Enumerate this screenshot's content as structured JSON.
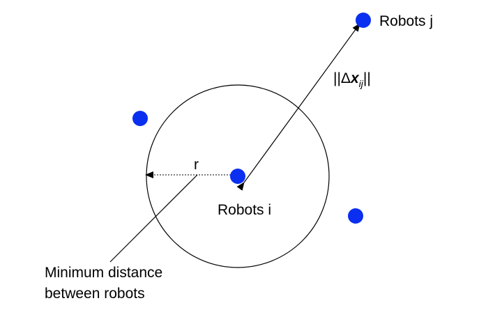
{
  "labels": {
    "robot_j": "Robots j",
    "robot_i": "Robots i",
    "radius": "r",
    "distance": {
      "bars_left": "||",
      "delta": "Δ",
      "x": "x",
      "subscript": "ij",
      "bars_right": "||"
    },
    "min_distance_line1": "Minimum distance",
    "min_distance_line2": "between robots"
  },
  "colors": {
    "robot": "#0a2ff0",
    "line": "#000000"
  },
  "robot_count": 4
}
